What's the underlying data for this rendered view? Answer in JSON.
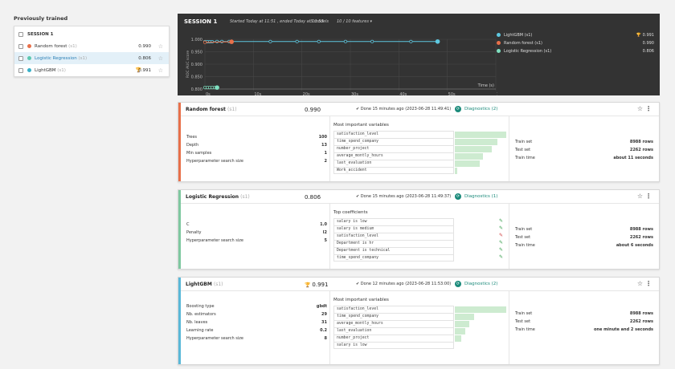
{
  "left": {
    "title": "Previously trained",
    "session_label": "SESSION 1",
    "models": [
      {
        "name": "Random forest",
        "tag": "(s1)",
        "score": "0.990",
        "color": "#e8704a",
        "best": false,
        "selected": false
      },
      {
        "name": "Logistic Regression",
        "tag": "(s1)",
        "score": "0.806",
        "color": "#5cc8b0",
        "best": false,
        "selected": true
      },
      {
        "name": "LightGBM",
        "tag": "(s1)",
        "score": "0.991",
        "color": "#3ab0c8",
        "best": true,
        "selected": false
      }
    ]
  },
  "session": {
    "title": "SESSION 1",
    "info": "Started Today at 11:51 , ended Today at 11:53",
    "count": "3 models",
    "features": "10 / 10 features",
    "legend": [
      {
        "name": "LightGBM (s1)",
        "value": "0.991",
        "color": "#5ec8e0",
        "best": true
      },
      {
        "name": "Random forest (s1)",
        "value": "0.990",
        "color": "#e8704a",
        "best": false
      },
      {
        "name": "Logistic Regression (s1)",
        "value": "0.806",
        "color": "#7fe0c0",
        "best": false
      }
    ]
  },
  "chart_data": {
    "type": "line",
    "ylabel": "ROC AUC score",
    "xlabel": "Time (s)",
    "yticks": [
      "1.000",
      "0.950",
      "0.900",
      "0.850",
      "0.800"
    ],
    "xticks": [
      "0s",
      "10s",
      "20s",
      "30s",
      "40s",
      "50s",
      "1:00"
    ],
    "ylim": [
      0.8,
      1.0
    ],
    "xlim": [
      0,
      60
    ],
    "series": [
      {
        "name": "LightGBM (s1)",
        "color": "#5ec8e0",
        "x": [
          0,
          0.5,
          1,
          1.5,
          2.5,
          3.5,
          5,
          13.5,
          19,
          23.5,
          29,
          34.5,
          42.5,
          48
        ],
        "y": [
          0.99,
          0.99,
          0.99,
          0.99,
          0.991,
          0.991,
          0.991,
          0.991,
          0.991,
          0.991,
          0.991,
          0.991,
          0.991,
          0.991
        ]
      },
      {
        "name": "Random forest (s1)",
        "color": "#e8704a",
        "x": [
          0,
          5.5
        ],
        "y": [
          0.988,
          0.99
        ]
      },
      {
        "name": "Logistic Regression (s1)",
        "color": "#7fe0c0",
        "x": [
          0,
          0.5,
          1,
          1.5,
          2,
          2.5
        ],
        "y": [
          0.806,
          0.806,
          0.806,
          0.806,
          0.806,
          0.806
        ]
      }
    ]
  },
  "cards": [
    {
      "name": "Random forest",
      "tag": "(s1)",
      "score": "0.990",
      "best": false,
      "color": "#e8704a",
      "done": "Done 15 minutes ago (2023-06-28 11:49:41)",
      "diagnostics": "Diagnostics (2)",
      "params": [
        {
          "label": "Trees",
          "value": "100"
        },
        {
          "label": "Depth",
          "value": "13"
        },
        {
          "label": "Min samples",
          "value": "1"
        },
        {
          "label": "Hyperparameter search size",
          "value": "2"
        }
      ],
      "vars_title": "Most important variables",
      "vars": [
        {
          "name": "satisfaction_level",
          "importance": 1.0
        },
        {
          "name": "time_spend_company",
          "importance": 0.82
        },
        {
          "name": "number_project",
          "importance": 0.72
        },
        {
          "name": "average_montly_hours",
          "importance": 0.55
        },
        {
          "name": "last_evaluation",
          "importance": 0.48
        },
        {
          "name": "Work_accident",
          "importance": 0.04
        }
      ],
      "stats": [
        {
          "label": "Train set",
          "value": "8988 rows"
        },
        {
          "label": "Test set",
          "value": "2262 rows"
        },
        {
          "label": "Train time",
          "value": "about 11 seconds"
        }
      ]
    },
    {
      "name": "Logistic Regression",
      "tag": "(s1)",
      "score": "0.806",
      "best": false,
      "color": "#7fc8a0",
      "done": "Done 15 minutes ago (2023-06-28 11:49:37)",
      "diagnostics": "Diagnostics (1)",
      "params": [
        {
          "label": "C",
          "value": "1.0"
        },
        {
          "label": "Penalty",
          "value": "l2"
        },
        {
          "label": "Hyperparameter search size",
          "value": "5"
        }
      ],
      "vars_title": "Top coefficients",
      "vars": [
        {
          "name": "salary is low",
          "sign": "pos"
        },
        {
          "name": "salary is medium",
          "sign": "pos"
        },
        {
          "name": "satisfaction_level",
          "sign": "neg"
        },
        {
          "name": "Department is hr",
          "sign": "pos"
        },
        {
          "name": "Department is technical",
          "sign": "pos"
        },
        {
          "name": "time_spend_company",
          "sign": "pos"
        }
      ],
      "stats": [
        {
          "label": "Train set",
          "value": "8988 rows"
        },
        {
          "label": "Test set",
          "value": "2262 rows"
        },
        {
          "label": "Train time",
          "value": "about 6 seconds"
        }
      ]
    },
    {
      "name": "LightGBM",
      "tag": "(s1)",
      "score": "0.991",
      "best": true,
      "color": "#5ab8d8",
      "done": "Done 12 minutes ago (2023-06-28 11:53:00)",
      "diagnostics": "Diagnostics (2)",
      "params": [
        {
          "label": "Boosting type",
          "value": "gbdt"
        },
        {
          "label": "Nb. estimators",
          "value": "29"
        },
        {
          "label": "Nb. leaves",
          "value": "31"
        },
        {
          "label": "Learning rate",
          "value": "0.2"
        },
        {
          "label": "Hyperparameter search size",
          "value": "8"
        }
      ],
      "vars_title": "Most important variables",
      "vars": [
        {
          "name": "satisfaction_level",
          "importance": 1.0
        },
        {
          "name": "time_spend_company",
          "importance": 0.38
        },
        {
          "name": "average_montly_hours",
          "importance": 0.28
        },
        {
          "name": "last_evaluation",
          "importance": 0.2
        },
        {
          "name": "number_project",
          "importance": 0.12
        },
        {
          "name": "salary is low",
          "importance": 0.0
        }
      ],
      "stats": [
        {
          "label": "Train set",
          "value": "8988 rows"
        },
        {
          "label": "Test set",
          "value": "2262 rows"
        },
        {
          "label": "Train time",
          "value": "one minute and 2 seconds"
        }
      ]
    }
  ]
}
